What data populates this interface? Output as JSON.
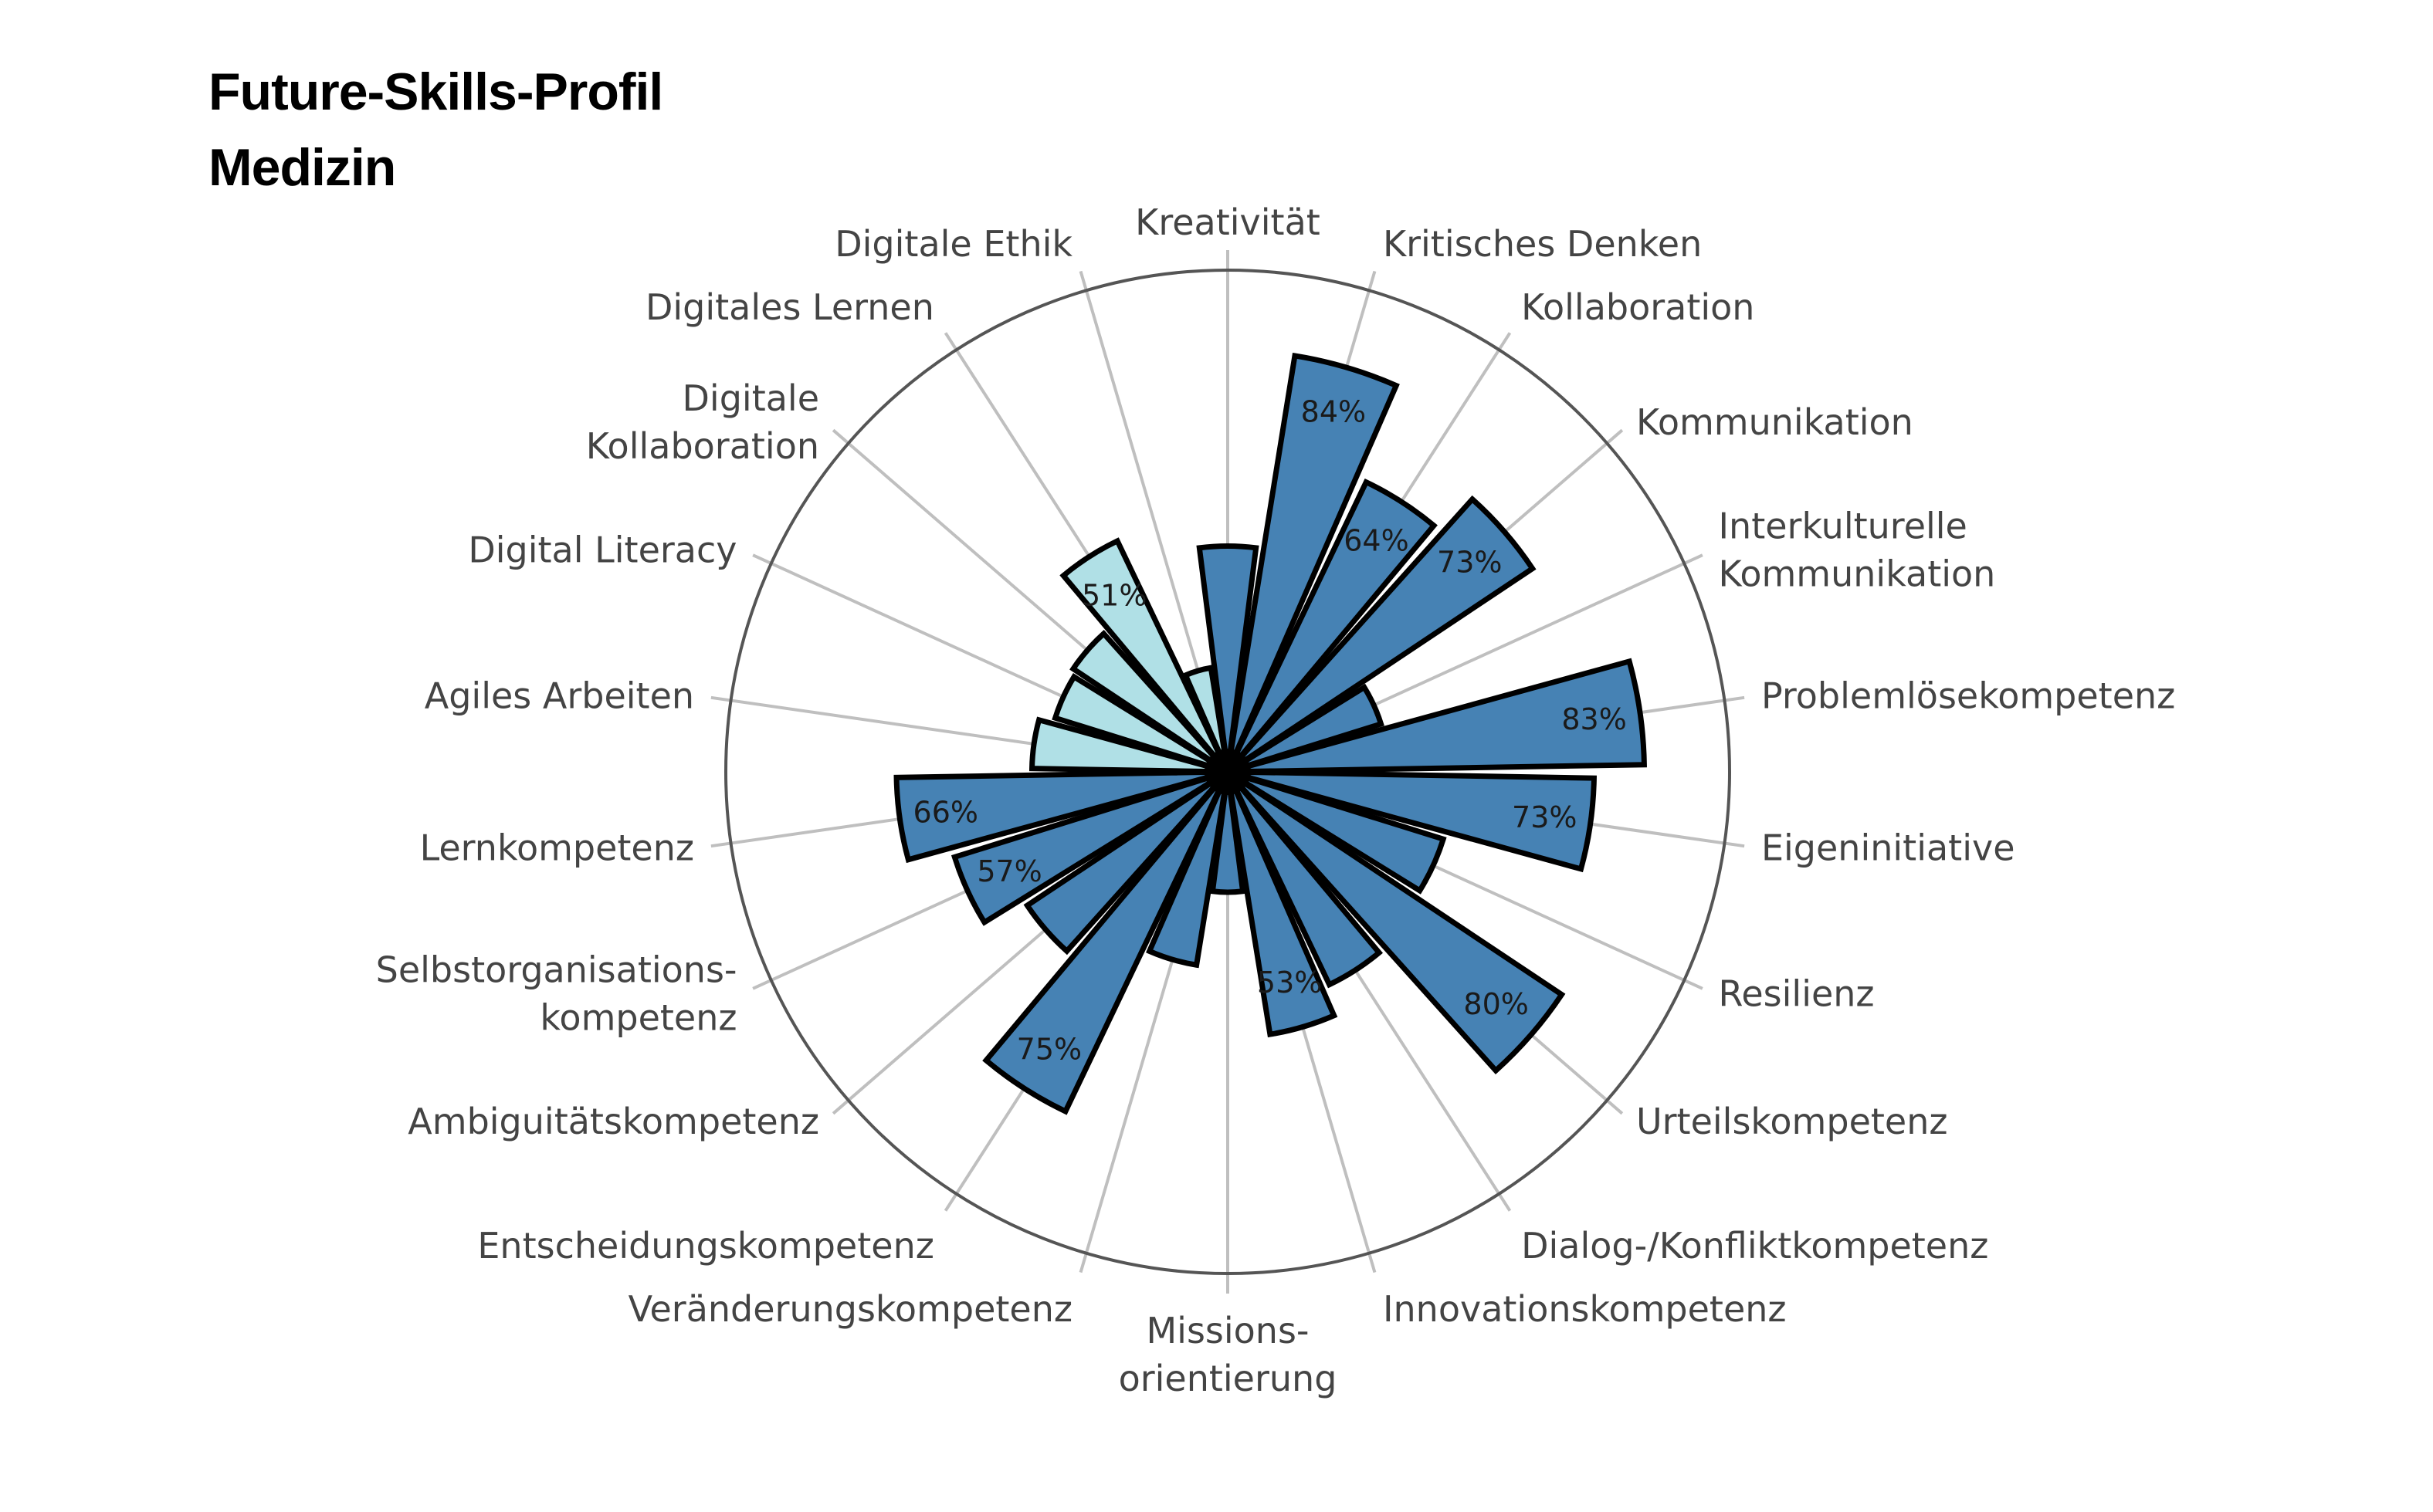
{
  "title_lines": [
    "Future-Skills-Profil",
    "Medizin"
  ],
  "colors": {
    "primary": "#4682b4",
    "digital": "#b0e0e6",
    "outline": "#000000",
    "spoke": "#bfbfbf",
    "ring": "#555555",
    "label": "#444444"
  },
  "chart_data": {
    "type": "polar-bar",
    "title": "Future-Skills-Profil Medizin",
    "radial_range": [
      0,
      100
    ],
    "grid": "spokes",
    "legend": "none",
    "categories": [
      {
        "name": "Kreativität",
        "label_lines": [
          "Kreativität"
        ],
        "value": 45,
        "group": "primary",
        "label": ""
      },
      {
        "name": "Kritisches Denken",
        "label_lines": [
          "Kritisches Denken"
        ],
        "value": 84,
        "group": "primary",
        "label": "84%"
      },
      {
        "name": "Kollaboration",
        "label_lines": [
          "Kollaboration"
        ],
        "value": 64,
        "group": "primary",
        "label": "64%"
      },
      {
        "name": "Kommunikation",
        "label_lines": [
          "Kommunikation"
        ],
        "value": 73,
        "group": "primary",
        "label": "73%"
      },
      {
        "name": "Interkulturelle Kommunikation",
        "label_lines": [
          "Interkulturelle",
          "Kommunikation"
        ],
        "value": 32,
        "group": "primary",
        "label": ""
      },
      {
        "name": "Problemlösekompetenz",
        "label_lines": [
          "Problemlösekompetenz"
        ],
        "value": 83,
        "group": "primary",
        "label": "83%"
      },
      {
        "name": "Eigeninitiative",
        "label_lines": [
          "Eigeninitiative"
        ],
        "value": 73,
        "group": "primary",
        "label": "73%"
      },
      {
        "name": "Resilienz",
        "label_lines": [
          "Resilienz"
        ],
        "value": 45,
        "group": "primary",
        "label": ""
      },
      {
        "name": "Urteilskompetenz",
        "label_lines": [
          "Urteilskompetenz"
        ],
        "value": 80,
        "group": "primary",
        "label": "80%"
      },
      {
        "name": "Dialog-/Konfliktkompetenz",
        "label_lines": [
          "Dialog-/Konfliktkompetenz"
        ],
        "value": 47,
        "group": "primary",
        "label": ""
      },
      {
        "name": "Innovationskompetenz",
        "label_lines": [
          "Innovationskompetenz"
        ],
        "value": 53,
        "group": "primary",
        "label": "53%"
      },
      {
        "name": "Missionsorientierung",
        "label_lines": [
          "Missions-",
          "orientierung"
        ],
        "value": 24,
        "group": "primary",
        "label": ""
      },
      {
        "name": "Veränderungskompetenz",
        "label_lines": [
          "Veränderungskompetenz"
        ],
        "value": 39,
        "group": "primary",
        "label": ""
      },
      {
        "name": "Entscheidungskompetenz",
        "label_lines": [
          "Entscheidungskompetenz"
        ],
        "value": 75,
        "group": "primary",
        "label": "75%"
      },
      {
        "name": "Ambiguitätskompetenz",
        "label_lines": [
          "Ambiguitätskompetenz"
        ],
        "value": 48,
        "group": "primary",
        "label": ""
      },
      {
        "name": "Selbstorganisationskompetenz",
        "label_lines": [
          "Selbstorganisations-",
          "kompetenz"
        ],
        "value": 57,
        "group": "primary",
        "label": "57%"
      },
      {
        "name": "Lernkompetenz",
        "label_lines": [
          "Lernkompetenz"
        ],
        "value": 66,
        "group": "primary",
        "label": "66%"
      },
      {
        "name": "Agiles Arbeiten",
        "label_lines": [
          "Agiles Arbeiten"
        ],
        "value": 39,
        "group": "digital",
        "label": ""
      },
      {
        "name": "Digital Literacy",
        "label_lines": [
          "Digital Literacy"
        ],
        "value": 36,
        "group": "digital",
        "label": ""
      },
      {
        "name": "Digitale Kollaboration",
        "label_lines": [
          "Digitale",
          "Kollaboration"
        ],
        "value": 37,
        "group": "digital",
        "label": ""
      },
      {
        "name": "Digitales Lernen",
        "label_lines": [
          "Digitales Lernen"
        ],
        "value": 51,
        "group": "digital",
        "label": "51%"
      },
      {
        "name": "Digitale Ethik",
        "label_lines": [
          "Digitale Ethik"
        ],
        "value": 21,
        "group": "digital",
        "label": ""
      }
    ]
  }
}
